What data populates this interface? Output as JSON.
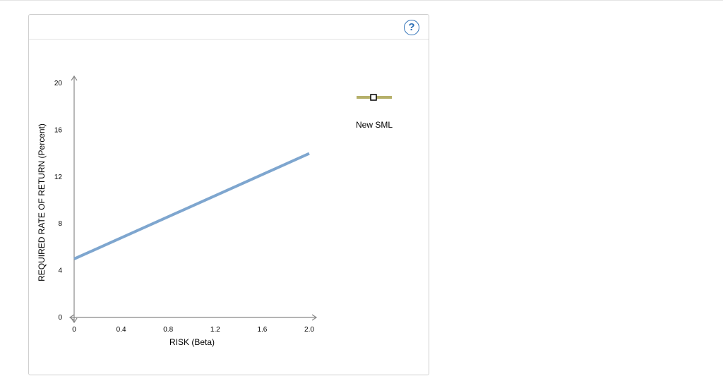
{
  "help": {
    "label": "?"
  },
  "legend": {
    "label": "New SML",
    "line_color": "#b5b06a"
  },
  "chart_data": {
    "type": "line",
    "xlabel": "RISK (Beta)",
    "ylabel": "REQUIRED RATE OF RETURN (Percent)",
    "xlim": [
      0,
      2.0
    ],
    "ylim": [
      0,
      20
    ],
    "x_ticks": [
      "0",
      "0.4",
      "0.8",
      "1.2",
      "1.6",
      "2.0"
    ],
    "y_ticks": [
      "0",
      "4",
      "8",
      "12",
      "16",
      "20"
    ],
    "series": [
      {
        "x": [
          0,
          2.0
        ],
        "y": [
          5,
          14
        ],
        "color": "#7ea6cf"
      }
    ],
    "legend_position": "top-right",
    "grid": false
  }
}
